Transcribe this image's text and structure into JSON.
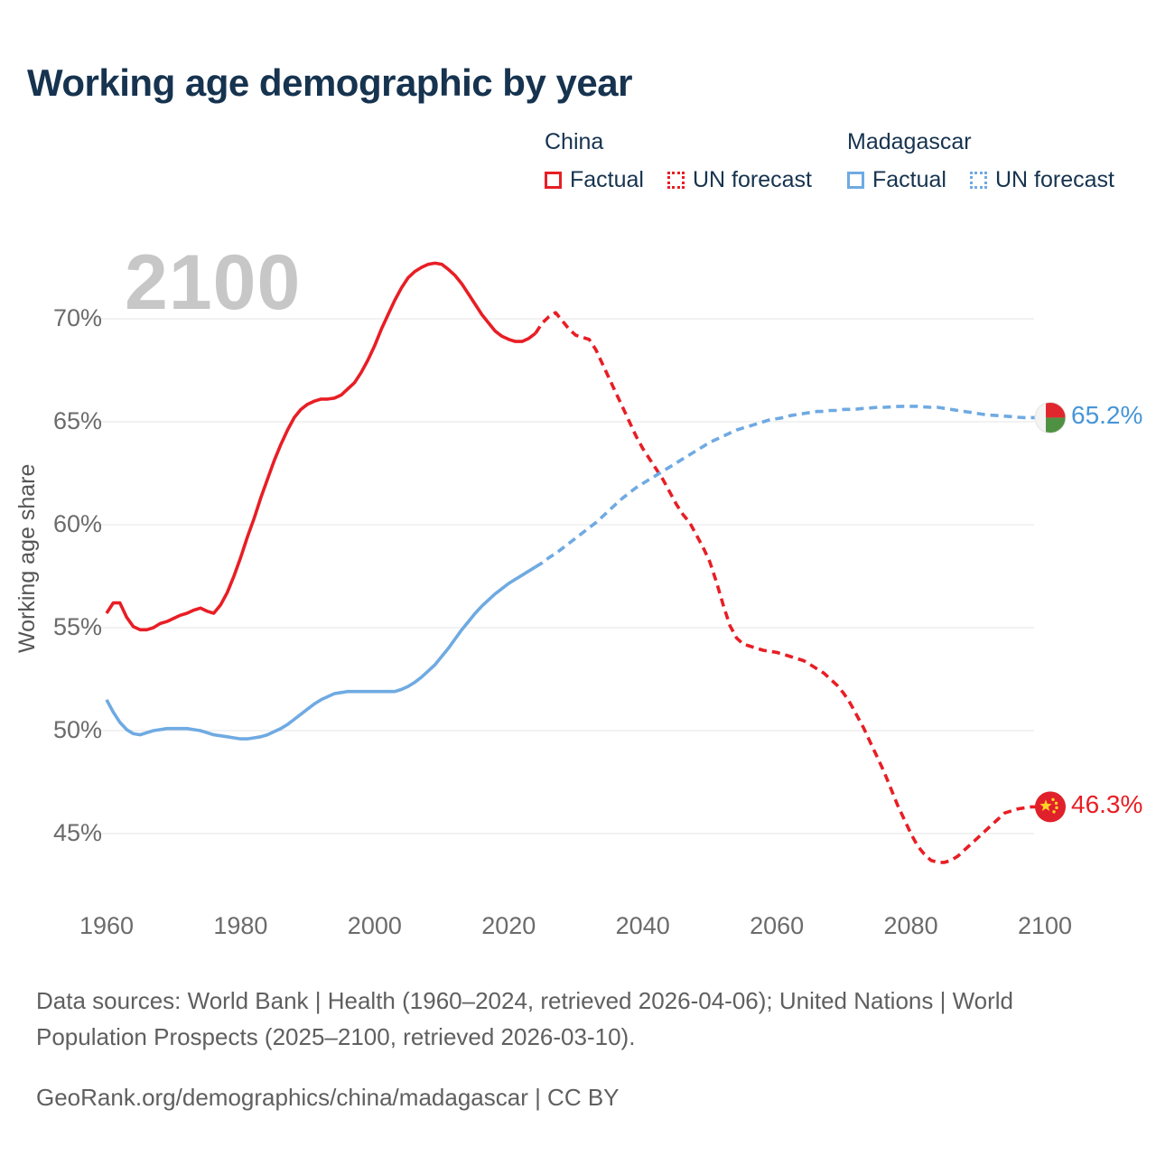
{
  "header": {
    "title": "Working age demographic by year"
  },
  "legend": {
    "china": {
      "title": "China",
      "factual": "Factual",
      "forecast": "UN forecast"
    },
    "madagascar": {
      "title": "Madagascar",
      "factual": "Factual",
      "forecast": "UN forecast"
    }
  },
  "watermark": "2100",
  "colors": {
    "china": "#e81e25",
    "madagascar": "#6faae2",
    "madagascar_label": "#4796d7",
    "title": "#16334f",
    "ticks": "#6b6b6b",
    "grid": "#ebebeb",
    "watermark": "#c7c7c7"
  },
  "chart_data": {
    "type": "line",
    "title": "Working age demographic by year",
    "xlabel": "",
    "ylabel": "Working age share",
    "x_ticks": [
      1960,
      1980,
      2000,
      2020,
      2040,
      2060,
      2080,
      2100
    ],
    "y_ticks": [
      45,
      50,
      55,
      60,
      65,
      70
    ],
    "y_tick_suffix": "%",
    "xlim": [
      1960,
      2100
    ],
    "ylim": [
      43,
      73.5
    ],
    "grid": "horizontal",
    "legend_position": "top-right",
    "series": [
      {
        "name": "China — Factual",
        "color": "#e81e25",
        "style": "solid",
        "points": [
          [
            1960,
            55.7
          ],
          [
            1961,
            56.2
          ],
          [
            1962,
            56.2
          ],
          [
            1963,
            55.5
          ],
          [
            1964,
            55.05
          ],
          [
            1965,
            54.9
          ],
          [
            1966,
            54.9
          ],
          [
            1967,
            55.0
          ],
          [
            1968,
            55.2
          ],
          [
            1969,
            55.3
          ],
          [
            1970,
            55.45
          ],
          [
            1971,
            55.6
          ],
          [
            1972,
            55.7
          ],
          [
            1973,
            55.85
          ],
          [
            1974,
            55.95
          ],
          [
            1975,
            55.8
          ],
          [
            1976,
            55.7
          ],
          [
            1977,
            56.1
          ],
          [
            1978,
            56.7
          ],
          [
            1979,
            57.5
          ],
          [
            1980,
            58.4
          ],
          [
            1981,
            59.4
          ],
          [
            1982,
            60.3
          ],
          [
            1983,
            61.3
          ],
          [
            1984,
            62.2
          ],
          [
            1985,
            63.1
          ],
          [
            1986,
            63.9
          ],
          [
            1987,
            64.6
          ],
          [
            1988,
            65.2
          ],
          [
            1989,
            65.6
          ],
          [
            1990,
            65.85
          ],
          [
            1991,
            66.0
          ],
          [
            1992,
            66.1
          ],
          [
            1993,
            66.1
          ],
          [
            1994,
            66.15
          ],
          [
            1995,
            66.3
          ],
          [
            1996,
            66.6
          ],
          [
            1997,
            66.9
          ],
          [
            1998,
            67.4
          ],
          [
            1999,
            68.0
          ],
          [
            2000,
            68.7
          ],
          [
            2001,
            69.5
          ],
          [
            2002,
            70.2
          ],
          [
            2003,
            70.9
          ],
          [
            2004,
            71.5
          ],
          [
            2005,
            72.0
          ],
          [
            2006,
            72.3
          ],
          [
            2007,
            72.5
          ],
          [
            2008,
            72.65
          ],
          [
            2009,
            72.7
          ],
          [
            2010,
            72.65
          ],
          [
            2011,
            72.4
          ],
          [
            2012,
            72.1
          ],
          [
            2013,
            71.7
          ],
          [
            2014,
            71.2
          ],
          [
            2015,
            70.7
          ],
          [
            2016,
            70.2
          ],
          [
            2017,
            69.8
          ],
          [
            2018,
            69.4
          ],
          [
            2019,
            69.15
          ],
          [
            2020,
            69.0
          ],
          [
            2021,
            68.9
          ],
          [
            2022,
            68.9
          ],
          [
            2023,
            69.05
          ],
          [
            2024,
            69.3
          ]
        ]
      },
      {
        "name": "China — UN forecast",
        "color": "#e81e25",
        "style": "dashed",
        "points": [
          [
            2024,
            69.3
          ],
          [
            2025,
            69.8
          ],
          [
            2026,
            70.1
          ],
          [
            2027,
            70.3
          ],
          [
            2028,
            69.9
          ],
          [
            2029,
            69.5
          ],
          [
            2030,
            69.2
          ],
          [
            2031,
            69.1
          ],
          [
            2032,
            69.0
          ],
          [
            2033,
            68.5
          ],
          [
            2034,
            67.8
          ],
          [
            2035,
            67.1
          ],
          [
            2036,
            66.4
          ],
          [
            2037,
            65.7
          ],
          [
            2038,
            65.0
          ],
          [
            2039,
            64.3
          ],
          [
            2040,
            63.7
          ],
          [
            2041,
            63.2
          ],
          [
            2042,
            62.7
          ],
          [
            2043,
            62.2
          ],
          [
            2044,
            61.6
          ],
          [
            2045,
            61.0
          ],
          [
            2046,
            60.5
          ],
          [
            2047,
            60.1
          ],
          [
            2048,
            59.5
          ],
          [
            2049,
            58.9
          ],
          [
            2050,
            58.2
          ],
          [
            2051,
            57.2
          ],
          [
            2052,
            56.1
          ],
          [
            2053,
            55.1
          ],
          [
            2054,
            54.5
          ],
          [
            2055,
            54.2
          ],
          [
            2056,
            54.1
          ],
          [
            2057,
            54.0
          ],
          [
            2058,
            53.9
          ],
          [
            2059,
            53.85
          ],
          [
            2060,
            53.8
          ],
          [
            2061,
            53.7
          ],
          [
            2062,
            53.6
          ],
          [
            2063,
            53.5
          ],
          [
            2064,
            53.4
          ],
          [
            2065,
            53.2
          ],
          [
            2066,
            53.0
          ],
          [
            2067,
            52.8
          ],
          [
            2068,
            52.5
          ],
          [
            2069,
            52.2
          ],
          [
            2070,
            51.8
          ],
          [
            2071,
            51.3
          ],
          [
            2072,
            50.7
          ],
          [
            2073,
            50.1
          ],
          [
            2074,
            49.4
          ],
          [
            2075,
            48.7
          ],
          [
            2076,
            48.0
          ],
          [
            2077,
            47.2
          ],
          [
            2078,
            46.4
          ],
          [
            2079,
            45.7
          ],
          [
            2080,
            45.0
          ],
          [
            2081,
            44.4
          ],
          [
            2082,
            44.0
          ],
          [
            2083,
            43.7
          ],
          [
            2084,
            43.6
          ],
          [
            2085,
            43.6
          ],
          [
            2086,
            43.7
          ],
          [
            2087,
            43.9
          ],
          [
            2088,
            44.2
          ],
          [
            2089,
            44.5
          ],
          [
            2090,
            44.8
          ],
          [
            2091,
            45.1
          ],
          [
            2092,
            45.4
          ],
          [
            2093,
            45.7
          ],
          [
            2094,
            46.0
          ],
          [
            2095,
            46.1
          ],
          [
            2096,
            46.2
          ],
          [
            2097,
            46.25
          ],
          [
            2098,
            46.3
          ],
          [
            2099,
            46.3
          ],
          [
            2100,
            46.3
          ]
        ]
      },
      {
        "name": "Madagascar — Factual",
        "color": "#6faae2",
        "style": "solid",
        "points": [
          [
            1960,
            51.5
          ],
          [
            1961,
            50.9
          ],
          [
            1962,
            50.4
          ],
          [
            1963,
            50.05
          ],
          [
            1964,
            49.85
          ],
          [
            1965,
            49.8
          ],
          [
            1966,
            49.9
          ],
          [
            1967,
            50.0
          ],
          [
            1968,
            50.05
          ],
          [
            1969,
            50.1
          ],
          [
            1970,
            50.1
          ],
          [
            1971,
            50.1
          ],
          [
            1972,
            50.1
          ],
          [
            1973,
            50.05
          ],
          [
            1974,
            50.0
          ],
          [
            1975,
            49.9
          ],
          [
            1976,
            49.8
          ],
          [
            1977,
            49.75
          ],
          [
            1978,
            49.7
          ],
          [
            1979,
            49.65
          ],
          [
            1980,
            49.6
          ],
          [
            1981,
            49.6
          ],
          [
            1982,
            49.65
          ],
          [
            1983,
            49.7
          ],
          [
            1984,
            49.8
          ],
          [
            1985,
            49.95
          ],
          [
            1986,
            50.1
          ],
          [
            1987,
            50.3
          ],
          [
            1988,
            50.55
          ],
          [
            1989,
            50.8
          ],
          [
            1990,
            51.05
          ],
          [
            1991,
            51.3
          ],
          [
            1992,
            51.5
          ],
          [
            1993,
            51.65
          ],
          [
            1994,
            51.8
          ],
          [
            1995,
            51.85
          ],
          [
            1996,
            51.9
          ],
          [
            1997,
            51.9
          ],
          [
            1998,
            51.9
          ],
          [
            1999,
            51.9
          ],
          [
            2000,
            51.9
          ],
          [
            2001,
            51.9
          ],
          [
            2002,
            51.9
          ],
          [
            2003,
            51.9
          ],
          [
            2004,
            52.0
          ],
          [
            2005,
            52.15
          ],
          [
            2006,
            52.35
          ],
          [
            2007,
            52.6
          ],
          [
            2008,
            52.9
          ],
          [
            2009,
            53.2
          ],
          [
            2010,
            53.6
          ],
          [
            2011,
            54.0
          ],
          [
            2012,
            54.45
          ],
          [
            2013,
            54.9
          ],
          [
            2014,
            55.3
          ],
          [
            2015,
            55.7
          ],
          [
            2016,
            56.05
          ],
          [
            2017,
            56.35
          ],
          [
            2018,
            56.65
          ],
          [
            2019,
            56.9
          ],
          [
            2020,
            57.15
          ],
          [
            2021,
            57.35
          ],
          [
            2022,
            57.55
          ],
          [
            2023,
            57.75
          ],
          [
            2024,
            57.95
          ]
        ]
      },
      {
        "name": "Madagascar — UN forecast",
        "color": "#6faae2",
        "style": "dashed",
        "points": [
          [
            2024,
            57.95
          ],
          [
            2025,
            58.15
          ],
          [
            2026,
            58.4
          ],
          [
            2027,
            58.6
          ],
          [
            2028,
            58.85
          ],
          [
            2029,
            59.1
          ],
          [
            2030,
            59.35
          ],
          [
            2031,
            59.6
          ],
          [
            2032,
            59.85
          ],
          [
            2033,
            60.1
          ],
          [
            2034,
            60.4
          ],
          [
            2035,
            60.7
          ],
          [
            2036,
            61.0
          ],
          [
            2037,
            61.3
          ],
          [
            2038,
            61.55
          ],
          [
            2039,
            61.8
          ],
          [
            2040,
            62.0
          ],
          [
            2041,
            62.2
          ],
          [
            2042,
            62.4
          ],
          [
            2043,
            62.6
          ],
          [
            2044,
            62.8
          ],
          [
            2045,
            63.0
          ],
          [
            2046,
            63.2
          ],
          [
            2047,
            63.4
          ],
          [
            2048,
            63.6
          ],
          [
            2049,
            63.8
          ],
          [
            2050,
            64.0
          ],
          [
            2051,
            64.15
          ],
          [
            2052,
            64.3
          ],
          [
            2053,
            64.45
          ],
          [
            2054,
            64.6
          ],
          [
            2055,
            64.7
          ],
          [
            2056,
            64.8
          ],
          [
            2057,
            64.9
          ],
          [
            2058,
            65.0
          ],
          [
            2059,
            65.1
          ],
          [
            2060,
            65.15
          ],
          [
            2061,
            65.2
          ],
          [
            2062,
            65.3
          ],
          [
            2063,
            65.35
          ],
          [
            2064,
            65.4
          ],
          [
            2065,
            65.45
          ],
          [
            2066,
            65.5
          ],
          [
            2067,
            65.5
          ],
          [
            2068,
            65.55
          ],
          [
            2069,
            65.55
          ],
          [
            2070,
            65.6
          ],
          [
            2071,
            65.6
          ],
          [
            2072,
            65.62
          ],
          [
            2073,
            65.65
          ],
          [
            2074,
            65.67
          ],
          [
            2075,
            65.7
          ],
          [
            2076,
            65.7
          ],
          [
            2077,
            65.72
          ],
          [
            2078,
            65.74
          ],
          [
            2079,
            65.75
          ],
          [
            2080,
            65.75
          ],
          [
            2081,
            65.75
          ],
          [
            2082,
            65.72
          ],
          [
            2083,
            65.7
          ],
          [
            2084,
            65.7
          ],
          [
            2085,
            65.65
          ],
          [
            2086,
            65.6
          ],
          [
            2087,
            65.55
          ],
          [
            2088,
            65.5
          ],
          [
            2089,
            65.45
          ],
          [
            2090,
            65.4
          ],
          [
            2091,
            65.35
          ],
          [
            2092,
            65.32
          ],
          [
            2093,
            65.3
          ],
          [
            2094,
            65.27
          ],
          [
            2095,
            65.25
          ],
          [
            2096,
            65.22
          ],
          [
            2097,
            65.2
          ],
          [
            2098,
            65.2
          ],
          [
            2099,
            65.2
          ],
          [
            2100,
            65.2
          ]
        ]
      }
    ],
    "end_labels": [
      {
        "series": "Madagascar",
        "value": 65.2,
        "value_label": "65.2%",
        "color": "#4796d7",
        "flag": "madagascar"
      },
      {
        "series": "China",
        "value": 46.3,
        "value_label": "46.3%",
        "color": "#e81e25",
        "flag": "china"
      }
    ]
  },
  "footer": {
    "sources_line1": "Data sources: World Bank | Health (1960–2024, retrieved 2026-04-06); United Nations | World",
    "sources_line2": "Population Prospects (2025–2100, retrieved 2026-03-10).",
    "attribution": "GeoRank.org/demographics/china/madagascar | CC BY"
  }
}
